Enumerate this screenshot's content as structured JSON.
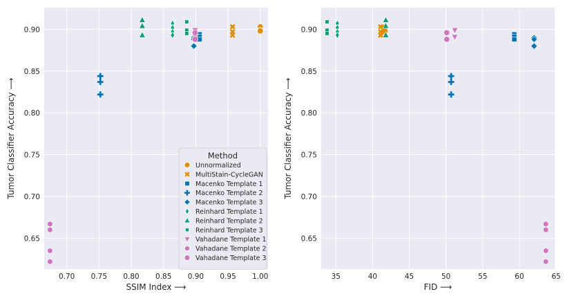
{
  "colors": {
    "panel_bg": "#EAEAF2",
    "grid": "#FFFFFF",
    "legend_bg": "#EAEAF2"
  },
  "legend": {
    "title": "Method"
  },
  "series_styles": [
    {
      "name": "Unnormalized",
      "color": "#DE8F05",
      "marker": "circle"
    },
    {
      "name": "MultiStain-CycleGAN",
      "color": "#DE8F05",
      "marker": "x"
    },
    {
      "name": "Macenko Template 1",
      "color": "#0173B2",
      "marker": "square"
    },
    {
      "name": "Macenko Template 2",
      "color": "#0173B2",
      "marker": "plus"
    },
    {
      "name": "Macenko Template 3",
      "color": "#0173B2",
      "marker": "diamond"
    },
    {
      "name": "Reinhard Template 1",
      "color": "#029E73",
      "marker": "thin_diamond"
    },
    {
      "name": "Reinhard Template 2",
      "color": "#029E73",
      "marker": "triangle_up"
    },
    {
      "name": "Reinhard Template 3",
      "color": "#029E73",
      "marker": "small_square"
    },
    {
      "name": "Vahadane Template 1",
      "color": "#CC78BC",
      "marker": "triangle_down"
    },
    {
      "name": "Vahadane Template 2",
      "color": "#CC78BC",
      "marker": "hexagon"
    },
    {
      "name": "Vahadane Template 3",
      "color": "#CC78BC",
      "marker": "circle"
    }
  ],
  "chart_data": [
    {
      "type": "scatter",
      "xlabel": "SSIM Index",
      "ylabel": "Tumor Classifier Accuracy",
      "xlabel_arrow": "⟶",
      "ylabel_arrow": "⟶",
      "xlim": [
        0.665,
        1.012
      ],
      "ylim": [
        0.613,
        0.926
      ],
      "xticks": [
        "0.70",
        "0.75",
        "0.80",
        "0.85",
        "0.90",
        "0.95",
        "1.00"
      ],
      "xtick_values": [
        0.7,
        0.75,
        0.8,
        0.85,
        0.9,
        0.95,
        1.0
      ],
      "yticks": [
        "0.65",
        "0.70",
        "0.75",
        "0.80",
        "0.85",
        "0.90"
      ],
      "ytick_values": [
        0.65,
        0.7,
        0.75,
        0.8,
        0.85,
        0.9
      ],
      "legend": "lower-right",
      "series": [
        {
          "name": "Unnormalized",
          "x": [
            1.0,
            1.0,
            1.0
          ],
          "y": [
            0.903,
            0.899,
            0.898
          ]
        },
        {
          "name": "MultiStain-CycleGAN",
          "x": [
            0.957,
            0.957,
            0.957
          ],
          "y": [
            0.903,
            0.897,
            0.893
          ]
        },
        {
          "name": "Macenko Template 1",
          "x": [
            0.906,
            0.906,
            0.906
          ],
          "y": [
            0.894,
            0.891,
            0.888
          ]
        },
        {
          "name": "Macenko Template 2",
          "x": [
            0.752,
            0.752,
            0.752
          ],
          "y": [
            0.844,
            0.837,
            0.822
          ]
        },
        {
          "name": "Macenko Template 3",
          "x": [
            0.897,
            0.897,
            0.897
          ],
          "y": [
            0.89,
            0.888,
            0.88
          ]
        },
        {
          "name": "Reinhard Template 1",
          "x": [
            0.864,
            0.864,
            0.864,
            0.864
          ],
          "y": [
            0.907,
            0.902,
            0.897,
            0.893
          ]
        },
        {
          "name": "Reinhard Template 2",
          "x": [
            0.817,
            0.817,
            0.817
          ],
          "y": [
            0.911,
            0.904,
            0.893
          ]
        },
        {
          "name": "Reinhard Template 3",
          "x": [
            0.886,
            0.886,
            0.886
          ],
          "y": [
            0.909,
            0.899,
            0.895
          ]
        },
        {
          "name": "Vahadane Template 1",
          "x": [
            0.899,
            0.899
          ],
          "y": [
            0.899,
            0.891
          ]
        },
        {
          "name": "Vahadane Template 2",
          "x": [
            0.674,
            0.674,
            0.674,
            0.674
          ],
          "y": [
            0.667,
            0.66,
            0.635,
            0.622
          ]
        },
        {
          "name": "Vahadane Template 3",
          "x": [
            0.899,
            0.899
          ],
          "y": [
            0.896,
            0.888
          ]
        }
      ]
    },
    {
      "type": "scatter",
      "xlabel": "FID",
      "ylabel": "Tumor Classifier Accuracy",
      "xlabel_arrow": "⟶",
      "ylabel_arrow": "⟶",
      "xlim": [
        33.0,
        64.8
      ],
      "ylim": [
        0.613,
        0.926
      ],
      "xticks": [
        "35",
        "40",
        "45",
        "50",
        "55",
        "60",
        "65"
      ],
      "xtick_values": [
        35,
        40,
        45,
        50,
        55,
        60,
        65
      ],
      "yticks": [
        "0.65",
        "0.70",
        "0.75",
        "0.80",
        "0.85",
        "0.90"
      ],
      "ytick_values": [
        0.65,
        0.7,
        0.75,
        0.8,
        0.85,
        0.9
      ],
      "legend": "none",
      "series": [
        {
          "name": "Unnormalized",
          "x": [
            41.7,
            41.7,
            41.7
          ],
          "y": [
            0.903,
            0.899,
            0.898
          ]
        },
        {
          "name": "MultiStain-CycleGAN",
          "x": [
            41.1,
            41.1,
            41.1,
            41.5,
            41.5
          ],
          "y": [
            0.903,
            0.897,
            0.893,
            0.901,
            0.896
          ]
        },
        {
          "name": "Macenko Template 1",
          "x": [
            59.3,
            59.3,
            59.3
          ],
          "y": [
            0.894,
            0.891,
            0.888
          ]
        },
        {
          "name": "Macenko Template 2",
          "x": [
            50.7,
            50.7,
            50.7
          ],
          "y": [
            0.844,
            0.837,
            0.822
          ]
        },
        {
          "name": "Macenko Template 3",
          "x": [
            62.0,
            62.0,
            62.0
          ],
          "y": [
            0.89,
            0.888,
            0.88
          ]
        },
        {
          "name": "Reinhard Template 1",
          "x": [
            35.2,
            35.2,
            35.2,
            35.2
          ],
          "y": [
            0.907,
            0.902,
            0.897,
            0.893
          ]
        },
        {
          "name": "Reinhard Template 2",
          "x": [
            41.8,
            41.8,
            41.8
          ],
          "y": [
            0.911,
            0.904,
            0.893
          ]
        },
        {
          "name": "Reinhard Template 3",
          "x": [
            33.8,
            33.8,
            33.8
          ],
          "y": [
            0.909,
            0.899,
            0.895
          ]
        },
        {
          "name": "Vahadane Template 1",
          "x": [
            51.2,
            51.2
          ],
          "y": [
            0.899,
            0.891
          ]
        },
        {
          "name": "Vahadane Template 2",
          "x": [
            63.6,
            63.6,
            63.6,
            63.6
          ],
          "y": [
            0.667,
            0.66,
            0.635,
            0.622
          ]
        },
        {
          "name": "Vahadane Template 3",
          "x": [
            50.1,
            50.1
          ],
          "y": [
            0.896,
            0.888
          ]
        }
      ]
    }
  ]
}
